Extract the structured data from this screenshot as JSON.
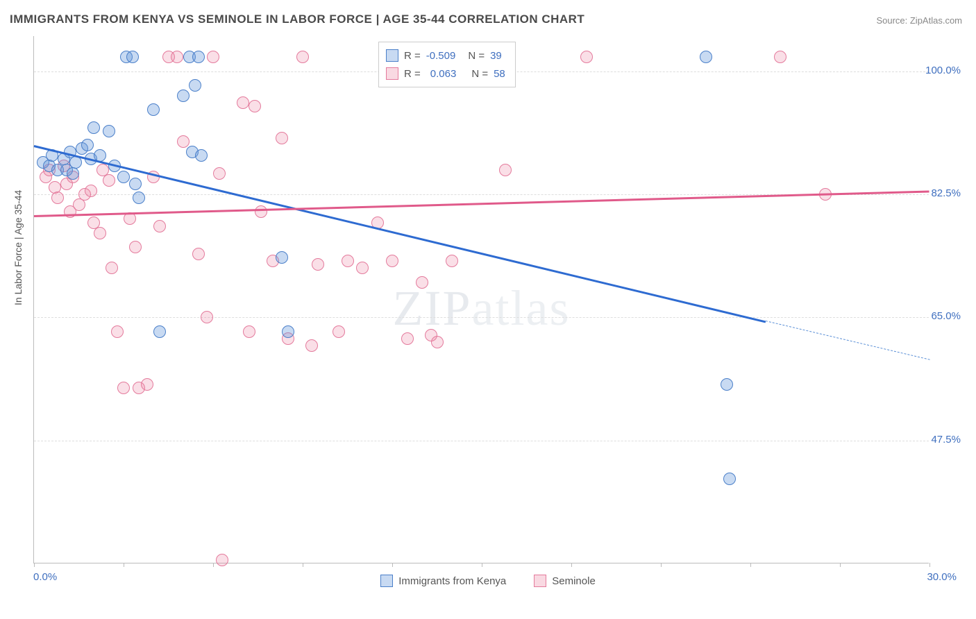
{
  "title": "IMMIGRANTS FROM KENYA VS SEMINOLE IN LABOR FORCE | AGE 35-44 CORRELATION CHART",
  "source": "Source: ZipAtlas.com",
  "ylabel": "In Labor Force | Age 35-44",
  "watermark": {
    "bold": "ZIP",
    "thin": "atlas"
  },
  "xlim": [
    0,
    30
  ],
  "ylim": [
    30,
    105
  ],
  "y_ticks": [
    47.5,
    65.0,
    82.5,
    100.0
  ],
  "y_tick_labels": [
    "47.5%",
    "65.0%",
    "82.5%",
    "100.0%"
  ],
  "x_ticks": [
    0,
    3,
    6,
    9,
    12,
    15,
    18,
    21,
    24,
    27,
    30
  ],
  "x_tick_labels": {
    "0": "0.0%",
    "30": "30.0%"
  },
  "series": {
    "blue": {
      "label": "Immigrants from Kenya",
      "color": "#4a7fc9",
      "fill": "rgba(97,150,219,0.35)",
      "R": "-0.509",
      "N": "39",
      "reg_line": {
        "x1": 0,
        "y1": 89.5,
        "x2": 24.5,
        "y2": 64.5
      },
      "reg_dashed": {
        "x1": 24.5,
        "y1": 64.5,
        "x2": 30,
        "y2": 59
      },
      "points": [
        [
          0.3,
          87
        ],
        [
          0.5,
          86.5
        ],
        [
          0.6,
          88
        ],
        [
          0.8,
          86
        ],
        [
          1.0,
          87.5
        ],
        [
          1.1,
          86
        ],
        [
          1.2,
          88.5
        ],
        [
          1.3,
          85.5
        ],
        [
          1.4,
          87
        ],
        [
          1.6,
          89
        ],
        [
          1.8,
          89.5
        ],
        [
          1.9,
          87.5
        ],
        [
          2.0,
          92
        ],
        [
          2.2,
          88
        ],
        [
          2.5,
          91.5
        ],
        [
          2.7,
          86.5
        ],
        [
          3.0,
          85
        ],
        [
          3.1,
          102
        ],
        [
          3.3,
          102
        ],
        [
          3.4,
          84
        ],
        [
          3.5,
          82
        ],
        [
          4.0,
          94.5
        ],
        [
          4.2,
          63
        ],
        [
          5.0,
          96.5
        ],
        [
          5.2,
          102
        ],
        [
          5.3,
          88.5
        ],
        [
          5.4,
          98
        ],
        [
          5.5,
          102
        ],
        [
          5.6,
          88
        ],
        [
          8.3,
          73.5
        ],
        [
          8.5,
          63
        ],
        [
          22.5,
          102
        ],
        [
          23.2,
          55.5
        ],
        [
          23.3,
          42
        ]
      ]
    },
    "pink": {
      "label": "Seminole",
      "color": "#e47a9c",
      "fill": "rgba(236,128,160,0.25)",
      "R": "0.063",
      "N": "58",
      "reg_line": {
        "x1": 0,
        "y1": 79.5,
        "x2": 30,
        "y2": 83
      },
      "points": [
        [
          0.4,
          85
        ],
        [
          0.5,
          86
        ],
        [
          0.7,
          83.5
        ],
        [
          0.8,
          82
        ],
        [
          1.0,
          86.5
        ],
        [
          1.1,
          84
        ],
        [
          1.2,
          80
        ],
        [
          1.3,
          85
        ],
        [
          1.5,
          81
        ],
        [
          1.7,
          82.5
        ],
        [
          1.9,
          83
        ],
        [
          2.0,
          78.5
        ],
        [
          2.2,
          77
        ],
        [
          2.3,
          86
        ],
        [
          2.5,
          84.5
        ],
        [
          2.6,
          72
        ],
        [
          2.8,
          63
        ],
        [
          3.0,
          55
        ],
        [
          3.2,
          79
        ],
        [
          3.4,
          75
        ],
        [
          3.5,
          55
        ],
        [
          3.8,
          55.5
        ],
        [
          4.0,
          85
        ],
        [
          4.2,
          78
        ],
        [
          4.5,
          102
        ],
        [
          4.8,
          102
        ],
        [
          5.0,
          90
        ],
        [
          5.5,
          74
        ],
        [
          5.8,
          65
        ],
        [
          6.0,
          102
        ],
        [
          6.2,
          85.5
        ],
        [
          6.3,
          30.5
        ],
        [
          7.0,
          95.5
        ],
        [
          7.2,
          63
        ],
        [
          7.4,
          95
        ],
        [
          7.6,
          80
        ],
        [
          8.0,
          73
        ],
        [
          8.3,
          90.5
        ],
        [
          8.5,
          62
        ],
        [
          9.0,
          102
        ],
        [
          9.3,
          61
        ],
        [
          9.5,
          72.5
        ],
        [
          10.2,
          63
        ],
        [
          10.5,
          73
        ],
        [
          11.0,
          72
        ],
        [
          11.5,
          78.5
        ],
        [
          12.0,
          73
        ],
        [
          12.5,
          62
        ],
        [
          13.0,
          70
        ],
        [
          13.3,
          62.5
        ],
        [
          13.5,
          61.5
        ],
        [
          14.0,
          73
        ],
        [
          15.8,
          86
        ],
        [
          18.5,
          102
        ],
        [
          25.0,
          102
        ],
        [
          26.5,
          82.5
        ]
      ]
    }
  },
  "legend_bottom": [
    {
      "key": "blue",
      "label": "Immigrants from Kenya"
    },
    {
      "key": "pink",
      "label": "Seminole"
    }
  ]
}
